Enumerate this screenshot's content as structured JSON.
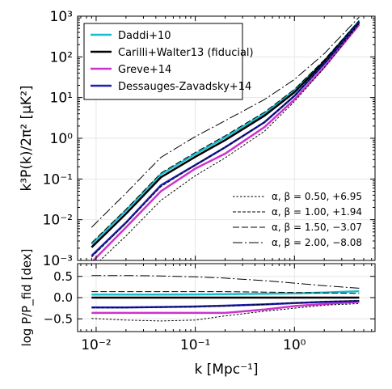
{
  "chart_data": [
    {
      "type": "line",
      "panel": "top",
      "ylabel": "k³P(k)/2π² [μK²]",
      "xscale": "log",
      "yscale": "log",
      "xlim": [
        0.0065,
        6.5
      ],
      "ylim": [
        0.001,
        1000
      ],
      "grid": true,
      "yticks": [
        {
          "value": 0.001,
          "label": "10⁻³"
        },
        {
          "value": 0.01,
          "label": "10⁻²"
        },
        {
          "value": 0.1,
          "label": "10⁻¹"
        },
        {
          "value": 1,
          "label": "10⁰"
        },
        {
          "value": 10,
          "label": "10¹"
        },
        {
          "value": 100,
          "label": "10²"
        },
        {
          "value": 1000,
          "label": "10³"
        }
      ],
      "x": [
        0.009,
        0.02,
        0.045,
        0.1,
        0.2,
        0.5,
        1.0,
        2.0,
        4.5
      ],
      "series": [
        {
          "name": "Daddi+10",
          "color": "#17becf",
          "style": "solid",
          "values": [
            0.0025,
            0.017,
            0.13,
            0.41,
            1.05,
            4.1,
            15,
            80,
            760
          ]
        },
        {
          "name": "Carilli+Walter13 (fiducial)",
          "color": "#000000",
          "style": "solid",
          "values": [
            0.0021,
            0.014,
            0.11,
            0.35,
            0.9,
            3.6,
            13.5,
            76,
            730
          ]
        },
        {
          "name": "Greve+14",
          "color": "#cc33cc",
          "style": "solid",
          "values": [
            0.0009,
            0.0065,
            0.05,
            0.18,
            0.42,
            1.9,
            9,
            56,
            620
          ]
        },
        {
          "name": "Dessauges-Zavadsky+14",
          "color": "#1f1fb4",
          "style": "solid",
          "values": [
            0.0013,
            0.0085,
            0.07,
            0.22,
            0.6,
            2.5,
            11,
            68,
            700
          ]
        },
        {
          "name": "α, β = 0.50, +6.95",
          "color": "#000000",
          "style": "dotted",
          "values": [
            0.0006,
            0.004,
            0.03,
            0.12,
            0.33,
            1.5,
            8,
            54,
            650
          ]
        },
        {
          "name": "α, β = 1.00, +1.94",
          "color": "#000000",
          "style": "dashed-short",
          "values": [
            0.0012,
            0.0082,
            0.065,
            0.22,
            0.6,
            2.5,
            11,
            68,
            700
          ]
        },
        {
          "name": "α, β = 1.50, −3.07",
          "color": "#000000",
          "style": "dashed",
          "values": [
            0.0027,
            0.018,
            0.14,
            0.45,
            1.15,
            4.4,
            16,
            84,
            780
          ]
        },
        {
          "name": "α, β = 2.00, −8.08",
          "color": "#000000",
          "style": "dashdot",
          "values": [
            0.0065,
            0.045,
            0.34,
            1.1,
            2.7,
            9,
            28,
            120,
            950
          ]
        }
      ]
    },
    {
      "type": "line",
      "panel": "bottom",
      "xlabel": "k [Mpc⁻¹]",
      "ylabel": "log P/P_fid [dex]",
      "xscale": "log",
      "xlim": [
        0.0065,
        6.5
      ],
      "ylim": [
        -0.8,
        0.8
      ],
      "grid": true,
      "xticks": [
        {
          "value": 0.01,
          "label": "10⁻²"
        },
        {
          "value": 0.1,
          "label": "10⁻¹"
        },
        {
          "value": 1,
          "label": "10⁰"
        }
      ],
      "yticks": [
        {
          "value": -0.5,
          "label": "−0.5"
        },
        {
          "value": 0.0,
          "label": "0.0"
        },
        {
          "value": 0.5,
          "label": "0.5"
        }
      ],
      "x": [
        0.009,
        0.02,
        0.045,
        0.1,
        0.2,
        0.5,
        1.0,
        2.0,
        4.5
      ],
      "series": [
        {
          "name": "Daddi+10",
          "color": "#17becf",
          "style": "solid",
          "values": [
            0.07,
            0.07,
            0.07,
            0.075,
            0.08,
            0.09,
            0.1,
            0.12,
            0.15
          ]
        },
        {
          "name": "Carilli+Walter13 (fiducial)",
          "color": "#000000",
          "style": "solid",
          "values": [
            0,
            0,
            0,
            0,
            0,
            0,
            0,
            0,
            0
          ]
        },
        {
          "name": "Greve+14",
          "color": "#cc33cc",
          "style": "solid",
          "values": [
            -0.36,
            -0.36,
            -0.36,
            -0.36,
            -0.36,
            -0.28,
            -0.2,
            -0.15,
            -0.1
          ]
        },
        {
          "name": "Dessauges-Zavadsky+14",
          "color": "#1f1fb4",
          "style": "solid",
          "values": [
            -0.23,
            -0.23,
            -0.22,
            -0.21,
            -0.19,
            -0.16,
            -0.13,
            -0.1,
            -0.08
          ]
        },
        {
          "name": "α, β = 0.50, +6.95",
          "color": "#000000",
          "style": "dotted",
          "values": [
            -0.49,
            -0.53,
            -0.55,
            -0.53,
            -0.43,
            -0.32,
            -0.25,
            -0.18,
            -0.14
          ]
        },
        {
          "name": "α, β = 1.00, +1.94",
          "color": "#000000",
          "style": "dashed-short",
          "values": [
            -0.24,
            -0.24,
            -0.23,
            -0.22,
            -0.2,
            -0.16,
            -0.12,
            -0.09,
            -0.07
          ]
        },
        {
          "name": "α, β = 1.50, −3.07",
          "color": "#000000",
          "style": "dashed",
          "values": [
            0.14,
            0.14,
            0.14,
            0.14,
            0.14,
            0.13,
            0.12,
            0.11,
            0.1
          ]
        },
        {
          "name": "α, β = 2.00, −8.08",
          "color": "#000000",
          "style": "dashdot",
          "values": [
            0.52,
            0.52,
            0.51,
            0.49,
            0.46,
            0.4,
            0.34,
            0.28,
            0.22
          ]
        }
      ]
    }
  ],
  "legend_main": {
    "placement": "top-left",
    "entries": [
      {
        "label": "Daddi+10",
        "color": "#17becf"
      },
      {
        "label": "Carilli+Walter13 (fiducial)",
        "color": "#000000"
      },
      {
        "label": "Greve+14",
        "color": "#cc33cc"
      },
      {
        "label": "Dessauges-Zavadsky+14",
        "color": "#1f1fb4"
      }
    ]
  },
  "legend_params": {
    "placement": "bottom-right",
    "entries": [
      {
        "label": "α, β = 0.50, +6.95",
        "style": "dotted"
      },
      {
        "label": "α, β = 1.00, +1.94",
        "style": "dashed-short"
      },
      {
        "label": "α, β = 1.50, −3.07",
        "style": "dashed"
      },
      {
        "label": "α, β = 2.00, −8.08",
        "style": "dashdot"
      }
    ]
  }
}
